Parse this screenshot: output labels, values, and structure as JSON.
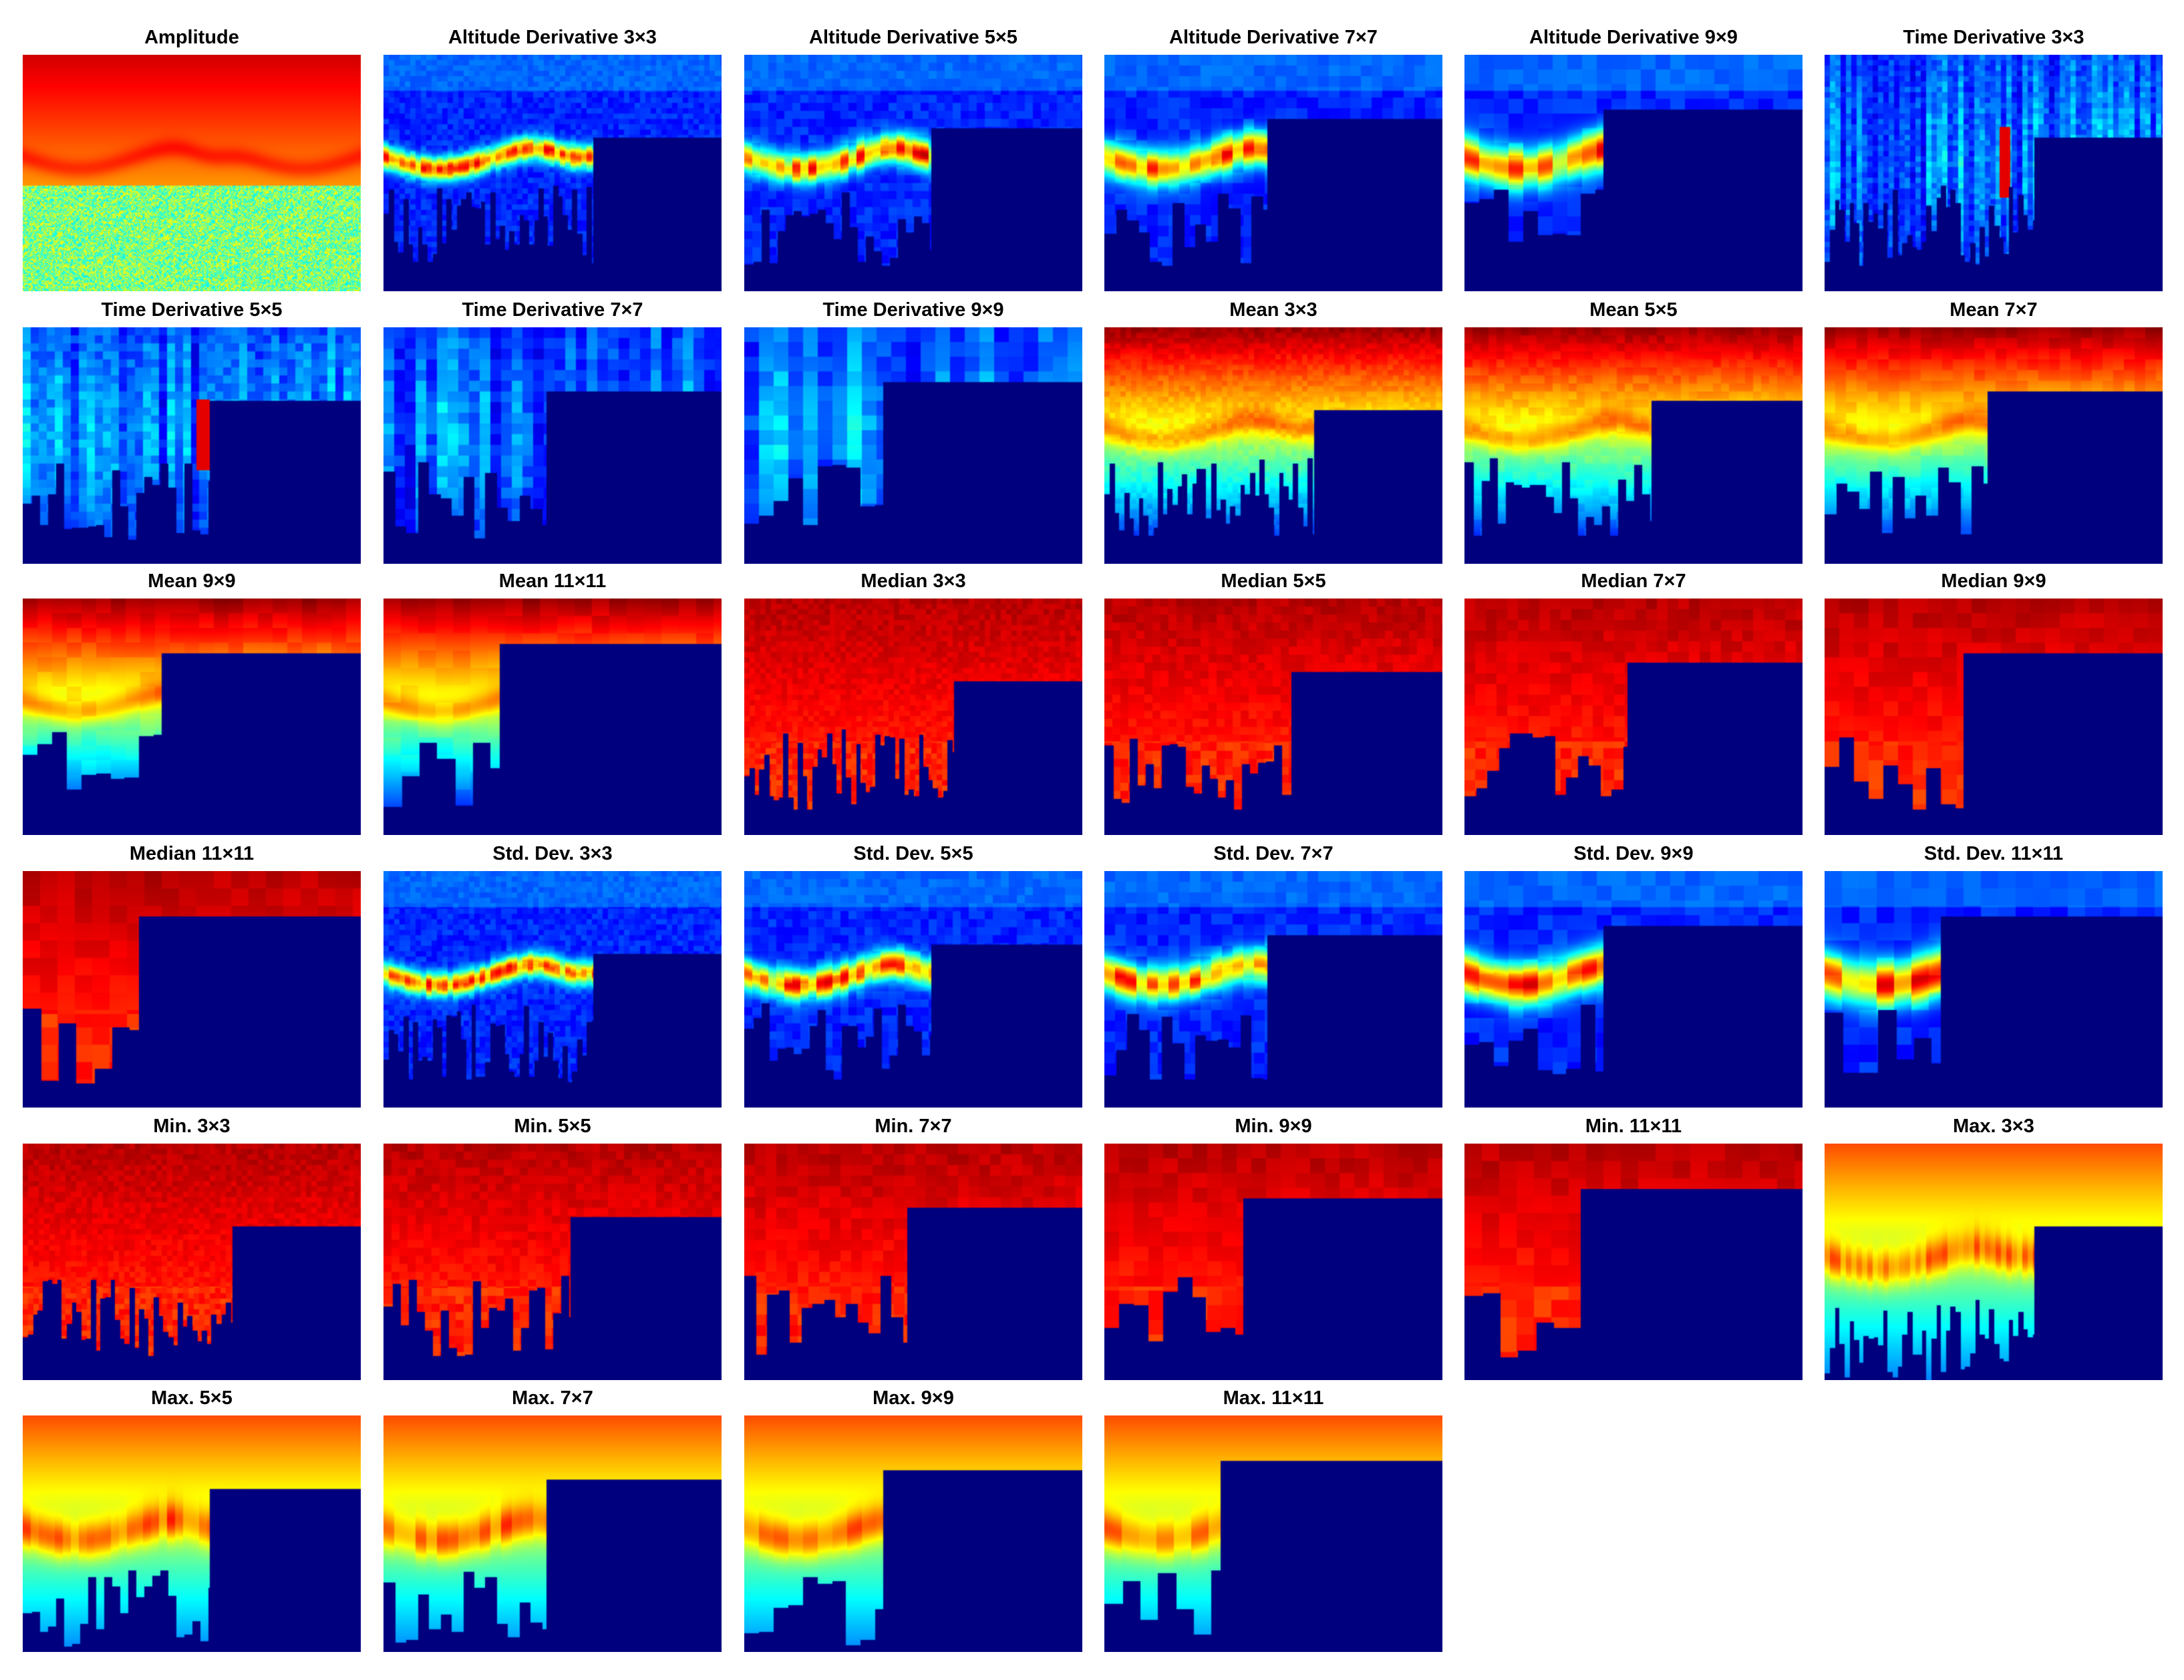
{
  "figure": {
    "colormap": "jet",
    "background_color": "#00007f",
    "panels": [
      {
        "title": "Amplitude",
        "kind": "amplitude"
      },
      {
        "title": "Altitude Derivative 3×3",
        "kind": "altitude_derivative",
        "size": 3
      },
      {
        "title": "Altitude Derivative 5×5",
        "kind": "altitude_derivative",
        "size": 5
      },
      {
        "title": "Altitude Derivative 7×7",
        "kind": "altitude_derivative",
        "size": 7
      },
      {
        "title": "Altitude Derivative 9×9",
        "kind": "altitude_derivative",
        "size": 9
      },
      {
        "title": "Time Derivative 3×3",
        "kind": "time_derivative",
        "size": 3
      },
      {
        "title": "Time Derivative 5×5",
        "kind": "time_derivative",
        "size": 5
      },
      {
        "title": "Time Derivative 7×7",
        "kind": "time_derivative",
        "size": 7
      },
      {
        "title": "Time Derivative 9×9",
        "kind": "time_derivative",
        "size": 9
      },
      {
        "title": "Mean 3×3",
        "kind": "mean",
        "size": 3
      },
      {
        "title": "Mean 5×5",
        "kind": "mean",
        "size": 5
      },
      {
        "title": "Mean 7×7",
        "kind": "mean",
        "size": 7
      },
      {
        "title": "Mean 9×9",
        "kind": "mean",
        "size": 9
      },
      {
        "title": "Mean 11×11",
        "kind": "mean",
        "size": 11
      },
      {
        "title": "Median 3×3",
        "kind": "median",
        "size": 3
      },
      {
        "title": "Median 5×5",
        "kind": "median",
        "size": 5
      },
      {
        "title": "Median 7×7",
        "kind": "median",
        "size": 7
      },
      {
        "title": "Median 9×9",
        "kind": "median",
        "size": 9
      },
      {
        "title": "Median 11×11",
        "kind": "median",
        "size": 11
      },
      {
        "title": "Std. Dev. 3×3",
        "kind": "std",
        "size": 3
      },
      {
        "title": "Std. Dev. 5×5",
        "kind": "std",
        "size": 5
      },
      {
        "title": "Std. Dev. 7×7",
        "kind": "std",
        "size": 7
      },
      {
        "title": "Std. Dev. 9×9",
        "kind": "std",
        "size": 9
      },
      {
        "title": "Std. Dev. 11×11",
        "kind": "std",
        "size": 11
      },
      {
        "title": "Min. 3×3",
        "kind": "min",
        "size": 3
      },
      {
        "title": "Min. 5×5",
        "kind": "min",
        "size": 5
      },
      {
        "title": "Min. 7×7",
        "kind": "min",
        "size": 7
      },
      {
        "title": "Min. 9×9",
        "kind": "min",
        "size": 9
      },
      {
        "title": "Min. 11×11",
        "kind": "min",
        "size": 11
      },
      {
        "title": "Max. 3×3",
        "kind": "max",
        "size": 3
      },
      {
        "title": "Max. 5×5",
        "kind": "max",
        "size": 5
      },
      {
        "title": "Max. 7×7",
        "kind": "max",
        "size": 7
      },
      {
        "title": "Max. 9×9",
        "kind": "max",
        "size": 9
      },
      {
        "title": "Max. 11×11",
        "kind": "max",
        "size": 11
      }
    ]
  }
}
